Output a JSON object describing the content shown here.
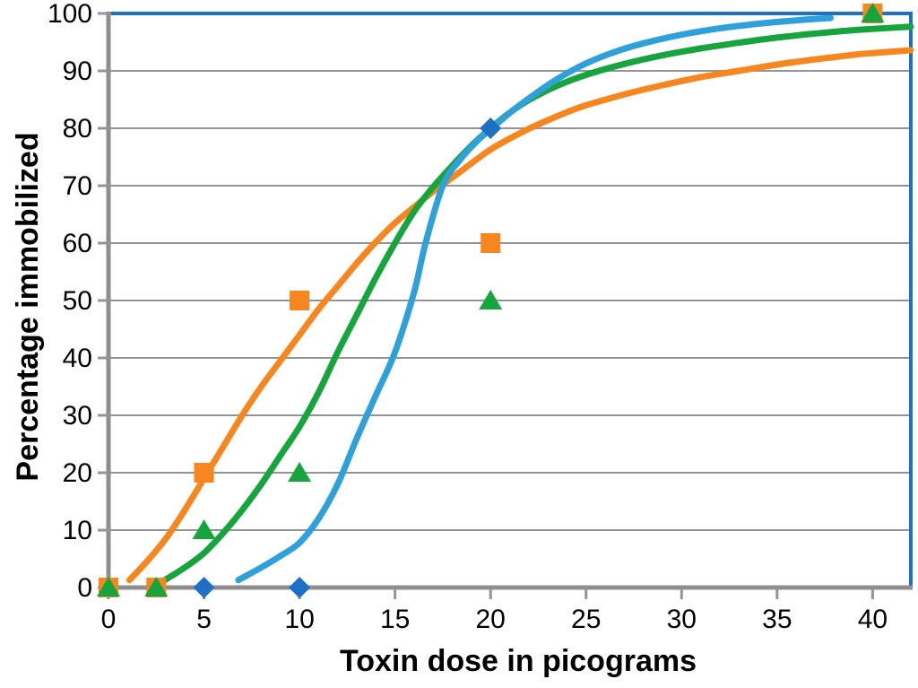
{
  "chart_data": {
    "type": "scatter",
    "title": "",
    "xlabel": "Toxin dose in picograms",
    "ylabel": "Percentage immobilized",
    "xlim": [
      0,
      42
    ],
    "ylim": [
      0,
      100
    ],
    "x_ticks": [
      0,
      5,
      10,
      15,
      20,
      25,
      30,
      35,
      40
    ],
    "y_ticks": [
      0,
      10,
      20,
      30,
      40,
      50,
      60,
      70,
      80,
      90,
      100
    ],
    "grid": "horizontal-only",
    "legend": "none",
    "colors": {
      "orange": "#F6861D",
      "green": "#16A53C",
      "blue_curve": "#2EA1DA",
      "blue_marker": "#1E70C6",
      "plot_border": "#1E70C6",
      "gridline": "#949494",
      "axis": "#8E8E8E",
      "text": "#000000"
    },
    "series": [
      {
        "name": "orange-squares",
        "marker": "square",
        "marker_color": "#F6861D",
        "curve_color": "#F6861D",
        "points": [
          [
            0,
            0
          ],
          [
            2.5,
            0
          ],
          [
            5,
            20
          ],
          [
            10,
            50
          ],
          [
            20,
            60
          ],
          [
            40,
            100
          ]
        ],
        "curve": [
          [
            1.1,
            1.3
          ],
          [
            2,
            4.5
          ],
          [
            3,
            8.5
          ],
          [
            4,
            13.5
          ],
          [
            5,
            19
          ],
          [
            6,
            24.5
          ],
          [
            7,
            30
          ],
          [
            8,
            35
          ],
          [
            9,
            39.5
          ],
          [
            10,
            44
          ],
          [
            11,
            48.5
          ],
          [
            12,
            52.5
          ],
          [
            13,
            56.5
          ],
          [
            14,
            60.2
          ],
          [
            15,
            63.5
          ],
          [
            16,
            66.3
          ],
          [
            17,
            69
          ],
          [
            18,
            71.4
          ],
          [
            19,
            73.9
          ],
          [
            20,
            76.3
          ],
          [
            21,
            78.2
          ],
          [
            22,
            79.9
          ],
          [
            23,
            81.4
          ],
          [
            24,
            82.8
          ],
          [
            25,
            84
          ],
          [
            27,
            85.9
          ],
          [
            29,
            87.5
          ],
          [
            31,
            88.9
          ],
          [
            33,
            90
          ],
          [
            35,
            91.1
          ],
          [
            37,
            92
          ],
          [
            39,
            92.8
          ],
          [
            40,
            93.1
          ],
          [
            42,
            93.6
          ]
        ]
      },
      {
        "name": "green-triangles",
        "marker": "triangle",
        "marker_color": "#16A53C",
        "curve_color": "#16A53C",
        "points": [
          [
            0,
            0
          ],
          [
            2.5,
            0
          ],
          [
            5,
            10
          ],
          [
            10,
            20
          ],
          [
            20,
            50
          ],
          [
            40,
            100
          ]
        ],
        "curve": [
          [
            2.9,
            1.2
          ],
          [
            4,
            3.5
          ],
          [
            5,
            6
          ],
          [
            6,
            9.5
          ],
          [
            7,
            13.5
          ],
          [
            8,
            18
          ],
          [
            9,
            23
          ],
          [
            10,
            28
          ],
          [
            11,
            34
          ],
          [
            12,
            41
          ],
          [
            13,
            47.5
          ],
          [
            14,
            54
          ],
          [
            15,
            60
          ],
          [
            16,
            65.5
          ],
          [
            17,
            69.8
          ],
          [
            18,
            73.5
          ],
          [
            19,
            77
          ],
          [
            20,
            80
          ],
          [
            21,
            82.7
          ],
          [
            22,
            84.9
          ],
          [
            23.5,
            87.4
          ],
          [
            25,
            89.3
          ],
          [
            27,
            91.2
          ],
          [
            29,
            92.7
          ],
          [
            31,
            93.9
          ],
          [
            33,
            94.9
          ],
          [
            35,
            95.8
          ],
          [
            37,
            96.5
          ],
          [
            39,
            97.1
          ],
          [
            40,
            97.3
          ],
          [
            42,
            97.7
          ]
        ]
      },
      {
        "name": "blue-diamonds",
        "marker": "diamond",
        "marker_color": "#1E70C6",
        "curve_color": "#2EA1DA",
        "points": [
          [
            5,
            0
          ],
          [
            10,
            0
          ],
          [
            20,
            80
          ]
        ],
        "curve": [
          [
            6.8,
            1.3
          ],
          [
            8,
            3.5
          ],
          [
            9,
            5.5
          ],
          [
            10,
            7.8
          ],
          [
            11,
            12
          ],
          [
            12,
            18
          ],
          [
            13,
            26
          ],
          [
            14,
            33.5
          ],
          [
            15,
            41
          ],
          [
            16,
            51.5
          ],
          [
            16.6,
            60
          ],
          [
            17.5,
            70
          ],
          [
            18.4,
            74.5
          ],
          [
            19.3,
            77.8
          ],
          [
            20.2,
            80.4
          ],
          [
            21.2,
            83.2
          ],
          [
            22.3,
            85.9
          ],
          [
            23.5,
            88.6
          ],
          [
            25,
            91.3
          ],
          [
            26.5,
            93.3
          ],
          [
            28,
            94.8
          ],
          [
            30,
            96.3
          ],
          [
            32,
            97.4
          ],
          [
            34,
            98.2
          ],
          [
            36,
            98.8
          ],
          [
            37.8,
            99.2
          ]
        ]
      }
    ]
  }
}
